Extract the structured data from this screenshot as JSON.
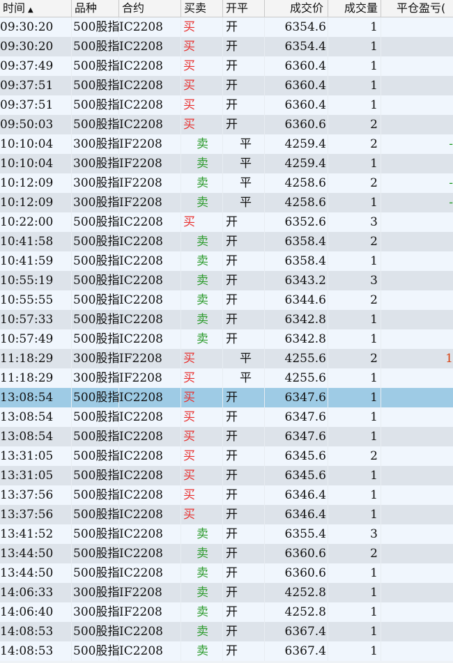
{
  "headers": {
    "time": "时间",
    "sort_indicator": "▲",
    "product": "品种",
    "contract": "合约",
    "side": "买卖",
    "openclose": "开平",
    "price": "成交价",
    "volume": "成交量",
    "pnl": "平仓盈亏("
  },
  "colors": {
    "buy": "#e8302e",
    "sell": "#2a9a2a",
    "selected_row": "#9ecbe5"
  },
  "selected_index": 19,
  "rows": [
    [
      "09:30:20",
      "500股指",
      "IC2208",
      "买",
      "开",
      "6354.6",
      "1",
      ""
    ],
    [
      "09:30:20",
      "500股指",
      "IC2208",
      "买",
      "开",
      "6354.4",
      "1",
      ""
    ],
    [
      "09:37:49",
      "500股指",
      "IC2208",
      "买",
      "开",
      "6360.4",
      "1",
      ""
    ],
    [
      "09:37:51",
      "500股指",
      "IC2208",
      "买",
      "开",
      "6360.4",
      "1",
      ""
    ],
    [
      "09:37:51",
      "500股指",
      "IC2208",
      "买",
      "开",
      "6360.4",
      "1",
      ""
    ],
    [
      "09:50:03",
      "500股指",
      "IC2208",
      "买",
      "开",
      "6360.6",
      "2",
      ""
    ],
    [
      "10:10:04",
      "300股指",
      "IF2208",
      "卖",
      "平",
      "4259.4",
      "2",
      "-"
    ],
    [
      "10:10:04",
      "300股指",
      "IF2208",
      "卖",
      "平",
      "4259.4",
      "1",
      ""
    ],
    [
      "10:12:09",
      "300股指",
      "IF2208",
      "卖",
      "平",
      "4258.6",
      "2",
      "-"
    ],
    [
      "10:12:09",
      "300股指",
      "IF2208",
      "卖",
      "平",
      "4258.6",
      "1",
      "-"
    ],
    [
      "10:22:00",
      "500股指",
      "IC2208",
      "买",
      "开",
      "6352.6",
      "3",
      ""
    ],
    [
      "10:41:58",
      "500股指",
      "IC2208",
      "卖",
      "开",
      "6358.4",
      "2",
      ""
    ],
    [
      "10:41:59",
      "500股指",
      "IC2208",
      "卖",
      "开",
      "6358.4",
      "1",
      ""
    ],
    [
      "10:55:19",
      "500股指",
      "IC2208",
      "卖",
      "开",
      "6343.2",
      "3",
      ""
    ],
    [
      "10:55:55",
      "500股指",
      "IC2208",
      "卖",
      "开",
      "6344.6",
      "2",
      ""
    ],
    [
      "10:57:33",
      "500股指",
      "IC2208",
      "卖",
      "开",
      "6342.8",
      "1",
      ""
    ],
    [
      "10:57:49",
      "500股指",
      "IC2208",
      "卖",
      "开",
      "6342.8",
      "1",
      ""
    ],
    [
      "11:18:29",
      "300股指",
      "IF2208",
      "买",
      "平",
      "4255.6",
      "2",
      "1"
    ],
    [
      "11:18:29",
      "300股指",
      "IF2208",
      "买",
      "平",
      "4255.6",
      "1",
      ""
    ],
    [
      "13:08:54",
      "500股指",
      "IC2208",
      "买",
      "开",
      "6347.6",
      "1",
      ""
    ],
    [
      "13:08:54",
      "500股指",
      "IC2208",
      "买",
      "开",
      "6347.6",
      "1",
      ""
    ],
    [
      "13:08:54",
      "500股指",
      "IC2208",
      "买",
      "开",
      "6347.6",
      "1",
      ""
    ],
    [
      "13:31:05",
      "500股指",
      "IC2208",
      "买",
      "开",
      "6345.6",
      "2",
      ""
    ],
    [
      "13:31:05",
      "500股指",
      "IC2208",
      "买",
      "开",
      "6345.6",
      "1",
      ""
    ],
    [
      "13:37:56",
      "500股指",
      "IC2208",
      "买",
      "开",
      "6346.4",
      "1",
      ""
    ],
    [
      "13:37:56",
      "500股指",
      "IC2208",
      "买",
      "开",
      "6346.4",
      "1",
      ""
    ],
    [
      "13:41:52",
      "500股指",
      "IC2208",
      "卖",
      "开",
      "6355.4",
      "3",
      ""
    ],
    [
      "13:44:50",
      "500股指",
      "IC2208",
      "卖",
      "开",
      "6360.6",
      "2",
      ""
    ],
    [
      "13:44:50",
      "500股指",
      "IC2208",
      "卖",
      "开",
      "6360.6",
      "1",
      ""
    ],
    [
      "14:06:33",
      "300股指",
      "IF2208",
      "卖",
      "开",
      "4252.8",
      "1",
      ""
    ],
    [
      "14:06:40",
      "300股指",
      "IF2208",
      "卖",
      "开",
      "4252.8",
      "1",
      ""
    ],
    [
      "14:08:53",
      "500股指",
      "IC2208",
      "卖",
      "开",
      "6367.4",
      "1",
      ""
    ],
    [
      "14:08:53",
      "500股指",
      "IC2208",
      "卖",
      "开",
      "6367.4",
      "1",
      ""
    ]
  ]
}
